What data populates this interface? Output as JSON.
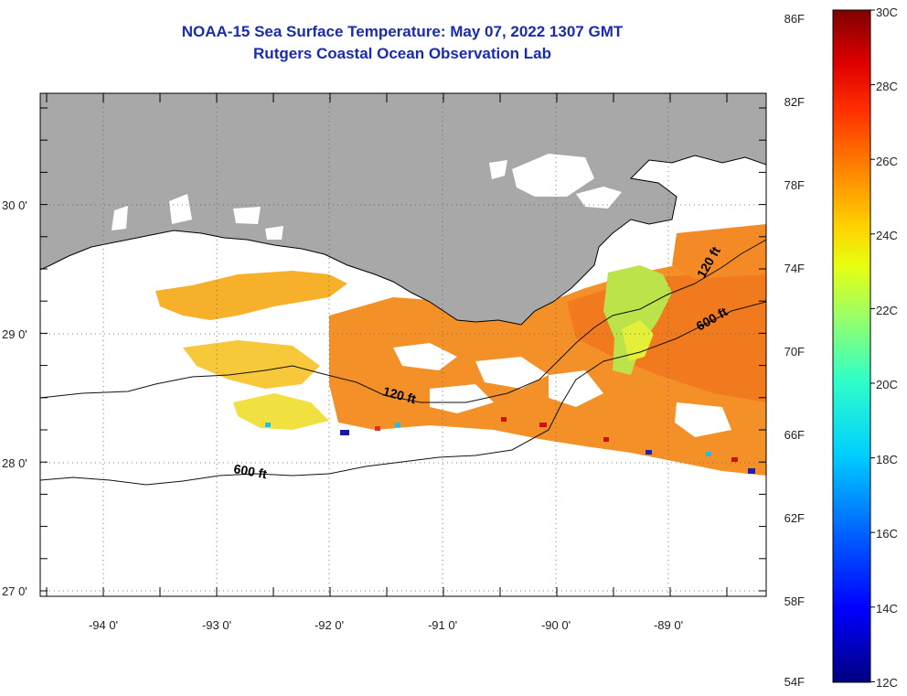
{
  "title": {
    "line1": "NOAA-15 Sea Surface Temperature:  May 07, 2022 1307 GMT",
    "line2": "Rutgers Coastal Ocean Observation Lab"
  },
  "map": {
    "lon_range": [
      -94.55,
      -88.2
    ],
    "lat_range": [
      26.95,
      30.85
    ],
    "lon_labels": [
      "-94 0'",
      "-93 0'",
      "-92 0'",
      "-91 0'",
      "-90 0'",
      "-89 0'"
    ],
    "lat_labels": [
      "30 0'",
      "29 0'",
      "28 0'",
      "27 0'"
    ],
    "land_color": "#a8a8a8",
    "grid": "dotted",
    "contour_labels": [
      "120 ft",
      "600 ft",
      "120 ft",
      "600 ft"
    ]
  },
  "colorbar": {
    "fahrenheit_labels": [
      "86F",
      "82F",
      "78F",
      "74F",
      "70F",
      "66F",
      "62F",
      "58F",
      "54F"
    ],
    "celsius_labels": [
      "30C",
      "28C",
      "26C",
      "24C",
      "22C",
      "20C",
      "18C",
      "16C",
      "14C",
      "12C"
    ],
    "range_c": [
      12,
      30
    ],
    "colormap": "jet"
  }
}
